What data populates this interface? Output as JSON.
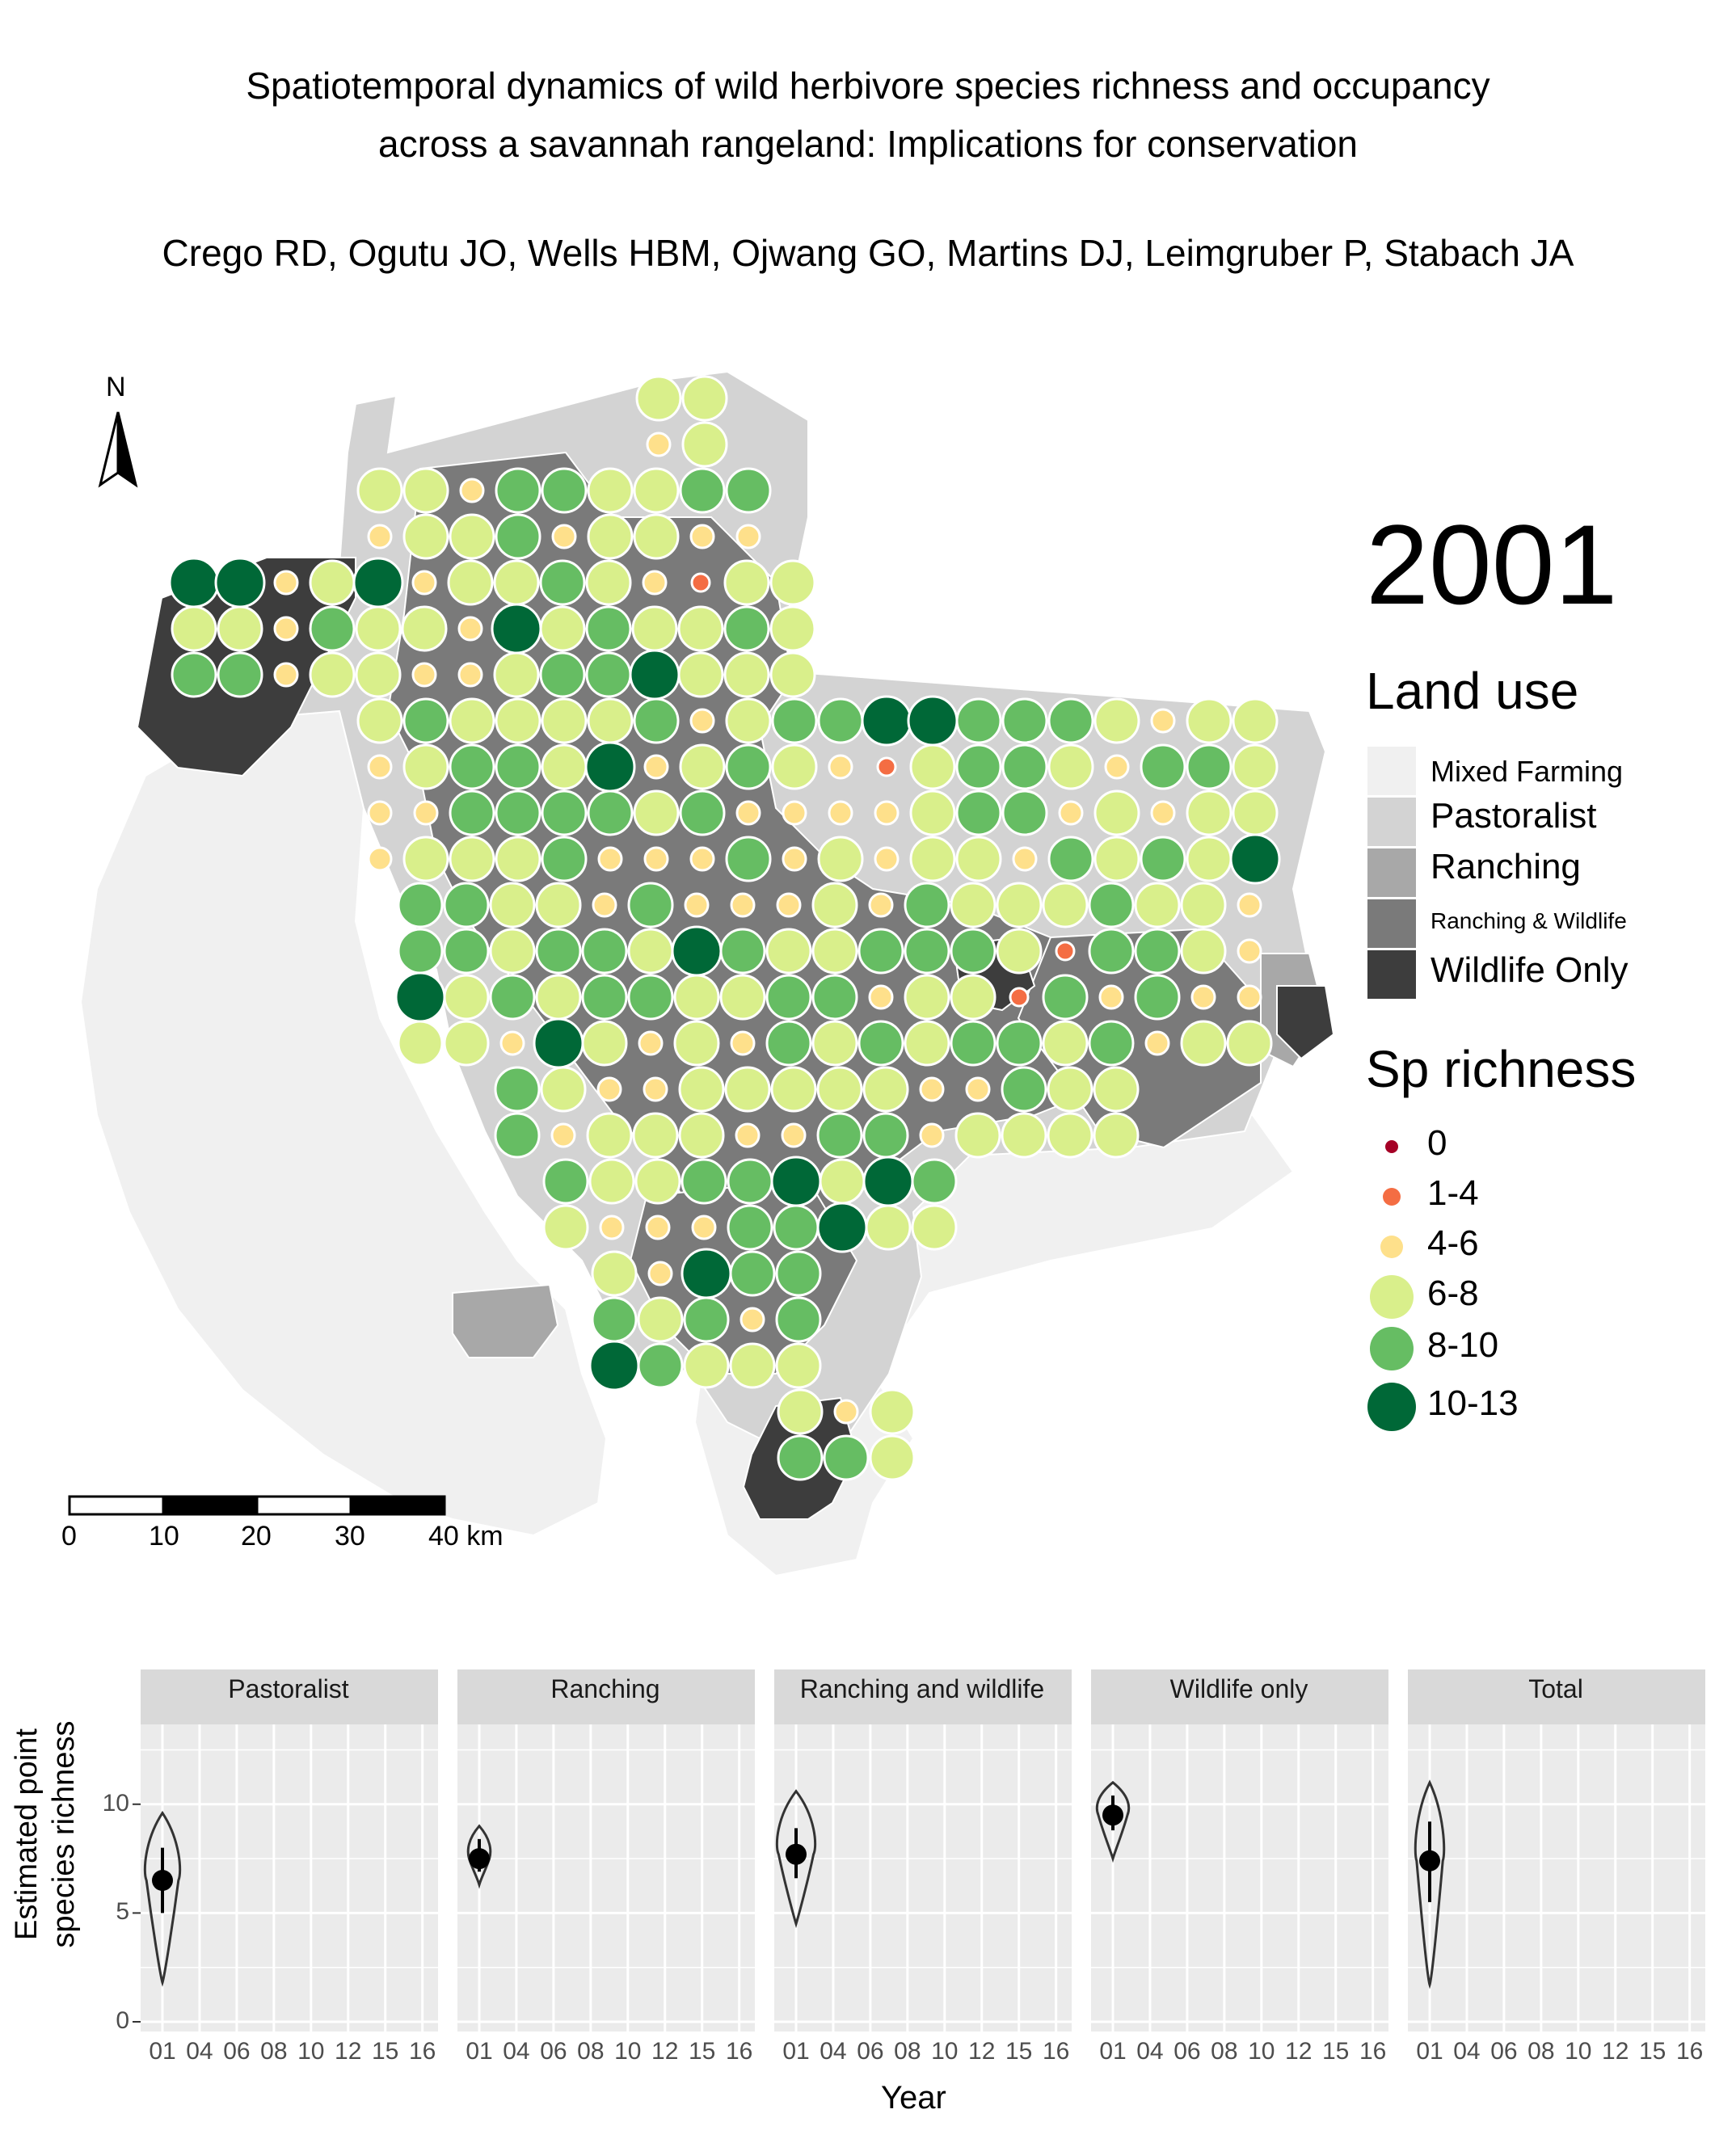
{
  "title": {
    "line1": "Spatiotemporal dynamics of wild herbivore species richness and occupancy",
    "line2": "across a savannah rangeland: Implications for conservation"
  },
  "authors": "Crego RD, Ogutu JO, Wells HBM, Ojwang GO, Martins DJ, Leimgruber P, Stabach JA",
  "map": {
    "north_label": "N",
    "year": "2001",
    "scalebar": {
      "ticks": [
        "0",
        "10",
        "20",
        "30",
        "40 km"
      ]
    },
    "land_use_legend": {
      "title": "Land use",
      "items": [
        {
          "label": "Mixed Farming",
          "color": "#f0f0f0"
        },
        {
          "label": "Pastoralist",
          "color": "#d3d3d3"
        },
        {
          "label": "Ranching",
          "color": "#a8a8a8"
        },
        {
          "label": "Ranching & Wildlife",
          "color": "#7a7a7a"
        },
        {
          "label": "Wildlife Only",
          "color": "#3d3d3d"
        }
      ]
    },
    "richness_legend": {
      "title": "Sp richness",
      "items": [
        {
          "label": "0",
          "color": "#a50026"
        },
        {
          "label": "1-4",
          "color": "#f46d43"
        },
        {
          "label": "4-6",
          "color": "#fee08b"
        },
        {
          "label": "6-8",
          "color": "#d9ef8b"
        },
        {
          "label": "8-10",
          "color": "#66bd63"
        },
        {
          "label": "10-13",
          "color": "#006837"
        }
      ]
    }
  },
  "chart_data": {
    "type": "violin",
    "facets": [
      "Pastoralist",
      "Ranching",
      "Ranching and wildlife",
      "Wildlife only",
      "Total"
    ],
    "x_ticks": [
      "01",
      "04",
      "06",
      "08",
      "10",
      "12",
      "15",
      "16"
    ],
    "y_ticks": [
      0,
      5,
      10
    ],
    "ylim": [
      0,
      13
    ],
    "xlabel": "Year",
    "ylabel_line1": "Estimated point",
    "ylabel_line2": "species richness",
    "series": [
      {
        "facet": "Pastoralist",
        "year": "01",
        "mean": 6.5,
        "lo": 5.0,
        "hi": 8.0,
        "min": 1.8,
        "max": 9.6
      },
      {
        "facet": "Ranching",
        "year": "01",
        "mean": 7.5,
        "lo": 6.9,
        "hi": 8.4,
        "min": 6.3,
        "max": 9.0
      },
      {
        "facet": "Ranching and wildlife",
        "year": "01",
        "mean": 7.7,
        "lo": 6.6,
        "hi": 8.9,
        "min": 4.5,
        "max": 10.6
      },
      {
        "facet": "Wildlife only",
        "year": "01",
        "mean": 9.5,
        "lo": 8.8,
        "hi": 10.4,
        "min": 7.5,
        "max": 11.0
      },
      {
        "facet": "Total",
        "year": "01",
        "mean": 7.4,
        "lo": 5.5,
        "hi": 9.2,
        "min": 1.7,
        "max": 11.0
      }
    ]
  }
}
